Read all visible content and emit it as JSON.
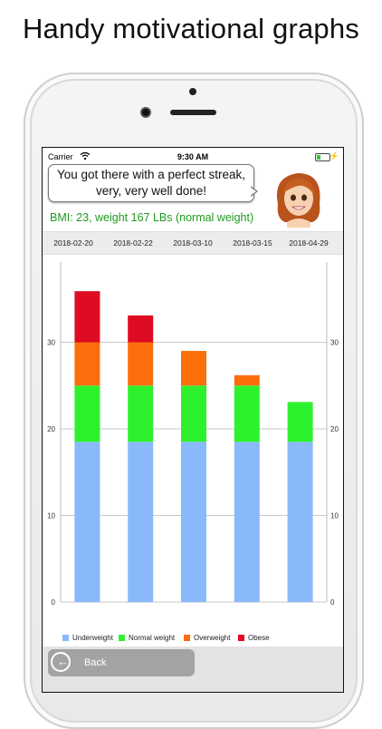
{
  "promo_title": "Handy motivational graphs",
  "status_bar": {
    "carrier": "Carrier",
    "time": "9:30 AM"
  },
  "speech_bubble": {
    "line1": "You got there with a perfect streak,",
    "line2": "very, very well done!"
  },
  "bmi_text": "BMI: 23, weight 167 LBs (normal weight)",
  "back_button": {
    "label": "Back"
  },
  "colors": {
    "underweight": "#8ab9fb",
    "normal": "#2ef12e",
    "overweight": "#fb6e0b",
    "obese": "#de0b22",
    "bmi_text": "#1f9a1f"
  },
  "chart_data": {
    "type": "bar",
    "stacked": true,
    "categories": [
      "2018-02-20",
      "2018-02-22",
      "2018-03-10",
      "2018-03-15",
      "2018-04-29"
    ],
    "ylim": [
      0,
      40
    ],
    "yticks": [
      0,
      10,
      20,
      30
    ],
    "grid": true,
    "legend_position": "bottom",
    "series": [
      {
        "name": "Underweight",
        "values": [
          18.5,
          18.5,
          18.5,
          18.5,
          18.5
        ]
      },
      {
        "name": "Normal weight",
        "values": [
          6.5,
          6.5,
          6.5,
          6.5,
          4.6
        ]
      },
      {
        "name": "Overweight",
        "values": [
          5,
          5,
          4,
          1.2,
          0
        ]
      },
      {
        "name": "Obese",
        "values": [
          5.9,
          3.1,
          0,
          0,
          0
        ]
      }
    ]
  }
}
